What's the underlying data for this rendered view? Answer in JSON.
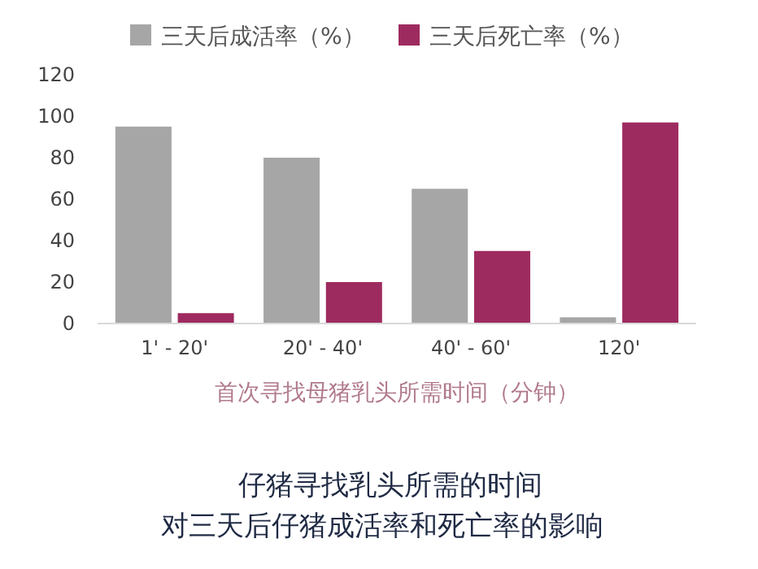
{
  "chart_data": {
    "type": "bar",
    "title": "仔猪寻找乳头所需的时间",
    "subtitle": "对三天后仔猪成活率和死亡率的影响",
    "xlabel": "首次寻找母猪乳头所需时间（分钟）",
    "categories": [
      "1' - 20'",
      "20' - 40'",
      "40' - 60'",
      "120'"
    ],
    "series": [
      {
        "name": "三天后成活率（%）",
        "color": "#a6a6a6",
        "values": [
          95,
          80,
          65,
          3
        ]
      },
      {
        "name": "三天后死亡率（%）",
        "color": "#9e2b5f",
        "values": [
          5,
          20,
          35,
          97
        ]
      }
    ],
    "ylim": [
      0,
      120
    ],
    "yticks": [
      0,
      20,
      40,
      60,
      80,
      100,
      120
    ],
    "grid": false,
    "legend": "top"
  }
}
